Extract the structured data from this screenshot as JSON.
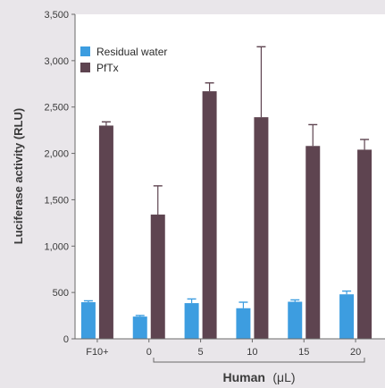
{
  "chart_data": {
    "type": "bar",
    "categories": [
      "F10+",
      "0",
      "5",
      "10",
      "15",
      "20"
    ],
    "series": [
      {
        "name": "Residual water",
        "color": "#3d9de0",
        "values": [
          395,
          240,
          385,
          330,
          400,
          480
        ],
        "errors": [
          15,
          12,
          45,
          65,
          20,
          35
        ]
      },
      {
        "name": "PfTx",
        "color": "#5e4450",
        "values": [
          2300,
          1340,
          2670,
          2390,
          2080,
          2040
        ],
        "errors": [
          40,
          310,
          90,
          760,
          230,
          110
        ]
      }
    ],
    "ylabel": "Luciferase activity (RLU)",
    "xlabel_bold": "Human",
    "xlabel_unit": "(μL)",
    "ylim": [
      0,
      3500
    ],
    "yticks": [
      "0",
      "500",
      "1,000",
      "1,500",
      "2,000",
      "2,500",
      "3,000",
      "3,500"
    ],
    "grid": false,
    "legend_position": "top-left"
  }
}
